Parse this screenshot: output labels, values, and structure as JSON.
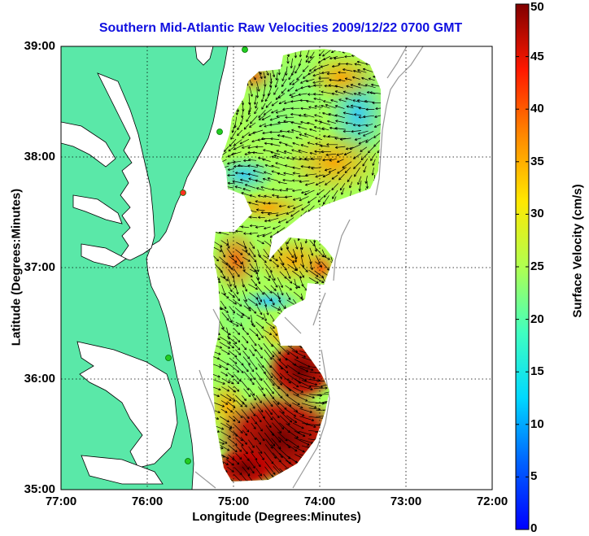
{
  "chart": {
    "title": "Southern Mid-Atlantic Raw Velocities 2009/12/22 0700 GMT",
    "xlabel": "Longitude (Degrees:Minutes)",
    "ylabel": "Latitude (Degrees:Minutes)",
    "colorbar_label": "Surface Velocity (cm/s)"
  },
  "chart_data": {
    "type": "heatmap",
    "title": "Southern Mid-Atlantic Raw Velocities 2009/12/22 0700 GMT",
    "xlabel": "Longitude (Degrees:Minutes)",
    "ylabel": "Latitude (Degrees:Minutes)",
    "x_ticks": [
      "77:00",
      "76:00",
      "75:00",
      "74:00",
      "73:00",
      "72:00"
    ],
    "y_ticks": [
      "39:00",
      "38:00",
      "37:00",
      "36:00",
      "35:00"
    ],
    "xlim": [
      -77,
      -72
    ],
    "ylim": [
      35,
      39
    ],
    "grid": true,
    "colorbar": {
      "label": "Surface Velocity (cm/s)",
      "min": 0,
      "max": 50,
      "ticks": [
        0,
        5,
        10,
        15,
        20,
        25,
        30,
        35,
        40,
        45,
        50
      ],
      "colormap": "jet"
    },
    "colors": {
      "land": "#5ae8a8",
      "title": "#1010e0",
      "coast": "#000000",
      "bathymetry": "#999999"
    }
  }
}
